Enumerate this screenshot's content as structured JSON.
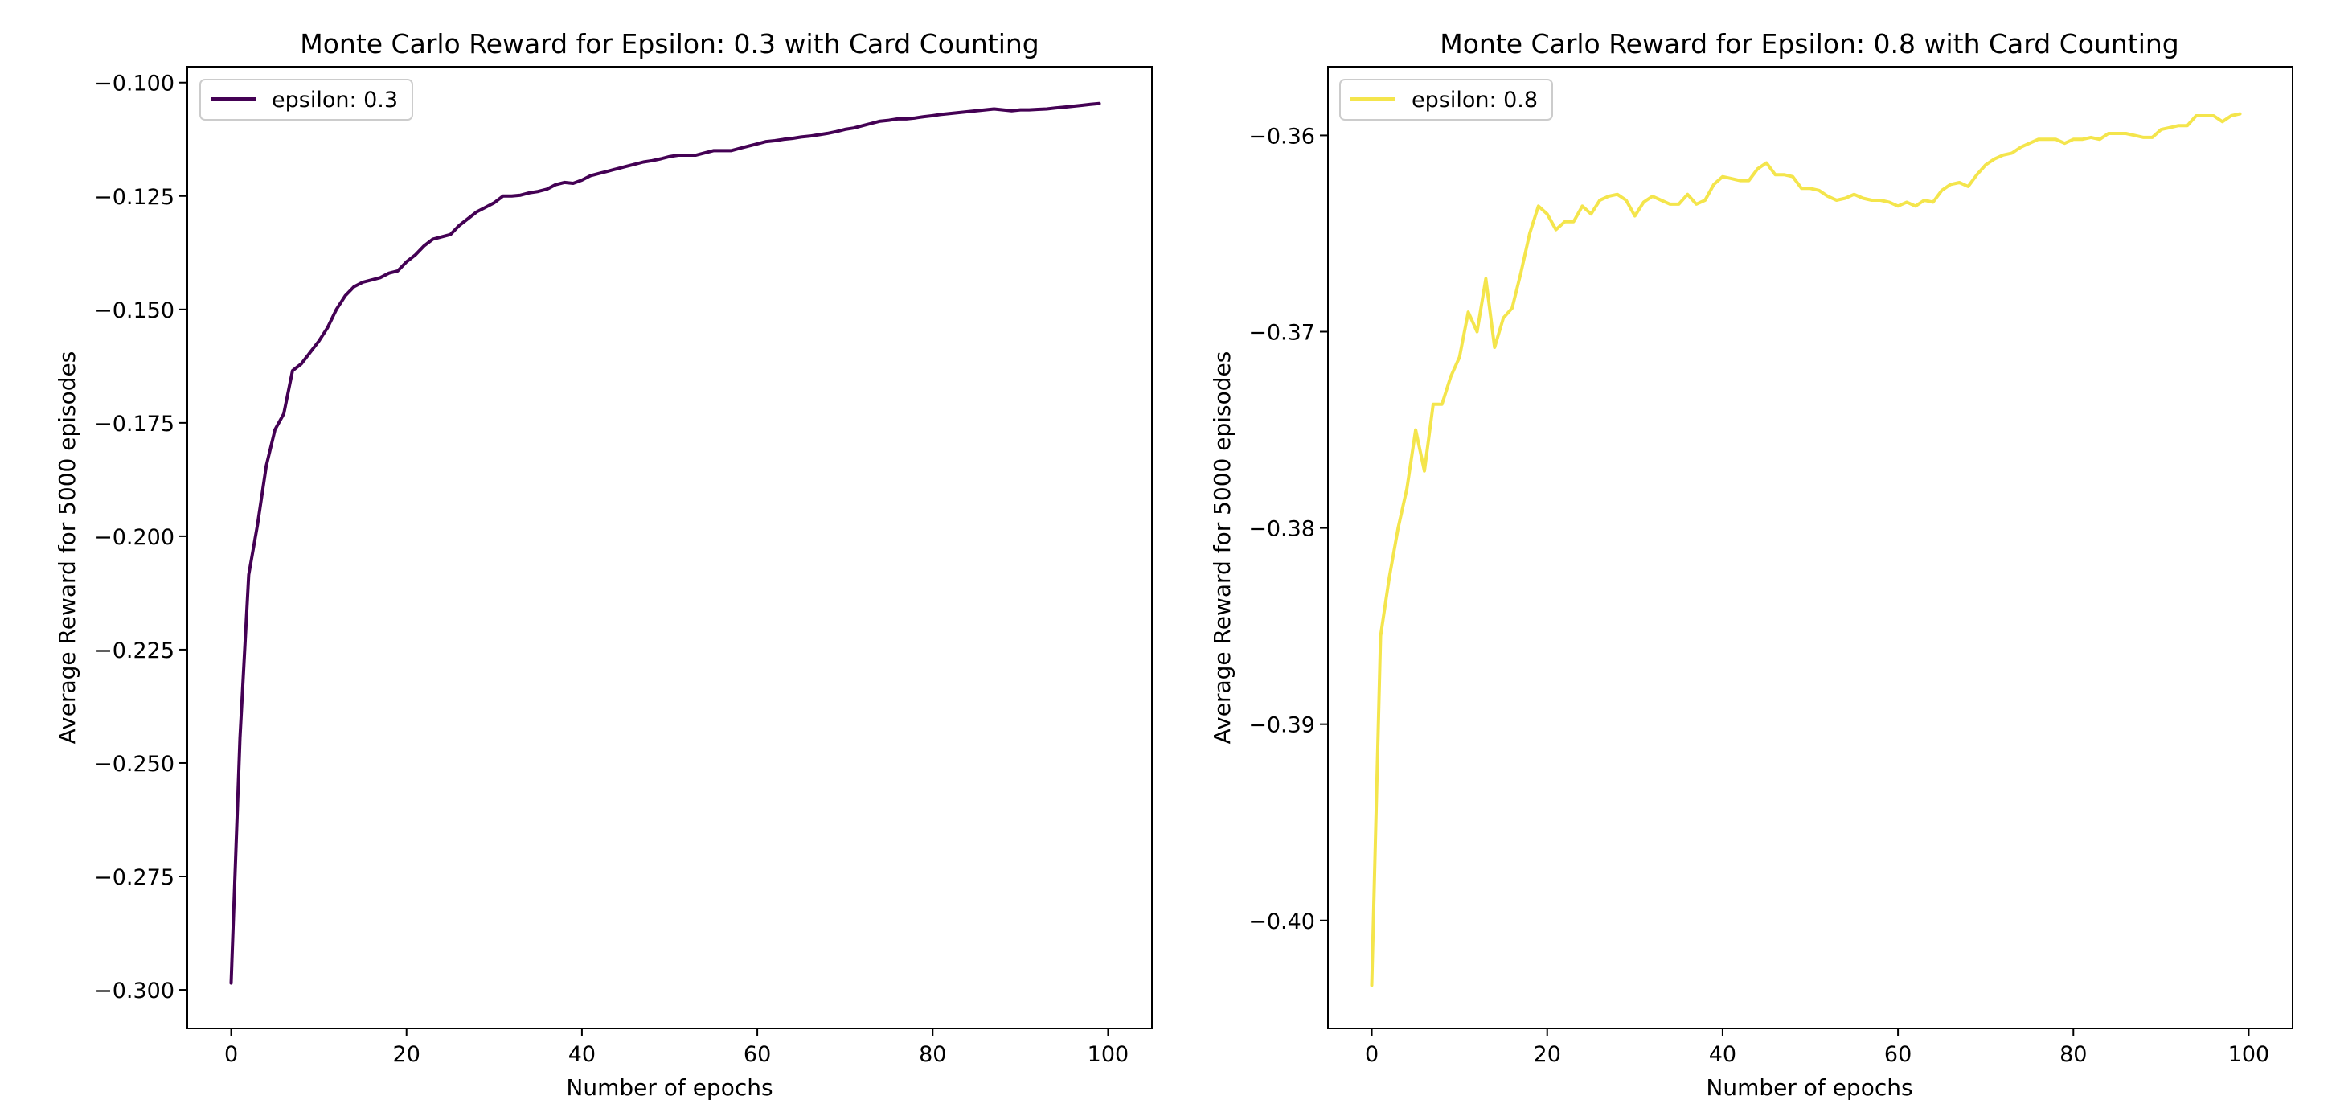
{
  "chart_data": [
    {
      "type": "line",
      "title": "Monte Carlo Reward for Epsilon: 0.3 with Card Counting",
      "xlabel": "Number of epochs",
      "ylabel": "Average Reward for 5000 episodes",
      "xlim": [
        -5,
        105
      ],
      "ylim": [
        -0.3085,
        -0.0965
      ],
      "xticks": [
        0,
        20,
        40,
        60,
        80,
        100
      ],
      "xtick_labels": [
        "0",
        "20",
        "40",
        "60",
        "80",
        "100"
      ],
      "yticks": [
        -0.1,
        -0.125,
        -0.15,
        -0.175,
        -0.2,
        -0.225,
        -0.25,
        -0.275,
        -0.3
      ],
      "ytick_labels": [
        "−0.100",
        "−0.125",
        "−0.150",
        "−0.175",
        "−0.200",
        "−0.225",
        "−0.250",
        "−0.275",
        "−0.300"
      ],
      "grid": false,
      "legend": "top-left",
      "color": "#440154",
      "series": [
        {
          "name": "epsilon: 0.3",
          "x": [
            0,
            1,
            2,
            3,
            4,
            5,
            6,
            7,
            8,
            9,
            10,
            11,
            12,
            13,
            14,
            15,
            16,
            17,
            18,
            19,
            20,
            21,
            22,
            23,
            24,
            25,
            26,
            27,
            28,
            29,
            30,
            31,
            32,
            33,
            34,
            35,
            36,
            37,
            38,
            39,
            40,
            41,
            42,
            43,
            44,
            45,
            46,
            47,
            48,
            49,
            50,
            51,
            52,
            53,
            54,
            55,
            56,
            57,
            58,
            59,
            60,
            61,
            62,
            63,
            64,
            65,
            66,
            67,
            68,
            69,
            70,
            71,
            72,
            73,
            74,
            75,
            76,
            77,
            78,
            79,
            80,
            81,
            82,
            83,
            84,
            85,
            86,
            87,
            88,
            89,
            90,
            91,
            92,
            93,
            94,
            95,
            96,
            97,
            98,
            99
          ],
          "y": [
            -0.2985,
            -0.2445,
            -0.2085,
            -0.1975,
            -0.1845,
            -0.1765,
            -0.173,
            -0.1635,
            -0.162,
            -0.1595,
            -0.157,
            -0.154,
            -0.15,
            -0.147,
            -0.145,
            -0.144,
            -0.1435,
            -0.143,
            -0.142,
            -0.1415,
            -0.1395,
            -0.138,
            -0.136,
            -0.1345,
            -0.134,
            -0.1335,
            -0.1315,
            -0.13,
            -0.1285,
            -0.1275,
            -0.1265,
            -0.125,
            -0.125,
            -0.1248,
            -0.1243,
            -0.124,
            -0.1235,
            -0.1225,
            -0.122,
            -0.1222,
            -0.1215,
            -0.1205,
            -0.12,
            -0.1195,
            -0.119,
            -0.1185,
            -0.118,
            -0.1175,
            -0.1172,
            -0.1168,
            -0.1163,
            -0.116,
            -0.116,
            -0.116,
            -0.1155,
            -0.115,
            -0.115,
            -0.115,
            -0.1145,
            -0.114,
            -0.1135,
            -0.113,
            -0.1128,
            -0.1125,
            -0.1123,
            -0.112,
            -0.1118,
            -0.1115,
            -0.1112,
            -0.1108,
            -0.1103,
            -0.11,
            -0.1095,
            -0.109,
            -0.1085,
            -0.1083,
            -0.108,
            -0.108,
            -0.1078,
            -0.1075,
            -0.1073,
            -0.107,
            -0.1068,
            -0.1066,
            -0.1064,
            -0.1062,
            -0.106,
            -0.1058,
            -0.106,
            -0.1062,
            -0.106,
            -0.106,
            -0.1059,
            -0.1058,
            -0.1056,
            -0.1054,
            -0.1052,
            -0.105,
            -0.1048,
            -0.1046
          ]
        }
      ]
    },
    {
      "type": "line",
      "title": "Monte Carlo Reward for Epsilon: 0.8 with Card Counting",
      "xlabel": "Number of epochs",
      "ylabel": "Average Reward for 5000 episodes",
      "xlim": [
        -5,
        105
      ],
      "ylim": [
        -0.4055,
        -0.3565
      ],
      "xticks": [
        0,
        20,
        40,
        60,
        80,
        100
      ],
      "xtick_labels": [
        "0",
        "20",
        "40",
        "60",
        "80",
        "100"
      ],
      "yticks": [
        -0.36,
        -0.37,
        -0.38,
        -0.39,
        -0.4
      ],
      "ytick_labels": [
        "−0.36",
        "−0.37",
        "−0.38",
        "−0.39",
        "−0.40"
      ],
      "grid": false,
      "legend": "top-left",
      "color": "#f4e54c",
      "series": [
        {
          "name": "epsilon: 0.8",
          "x": [
            0,
            1,
            2,
            3,
            4,
            5,
            6,
            7,
            8,
            9,
            10,
            11,
            12,
            13,
            14,
            15,
            16,
            17,
            18,
            19,
            20,
            21,
            22,
            23,
            24,
            25,
            26,
            27,
            28,
            29,
            30,
            31,
            32,
            33,
            34,
            35,
            36,
            37,
            38,
            39,
            40,
            41,
            42,
            43,
            44,
            45,
            46,
            47,
            48,
            49,
            50,
            51,
            52,
            53,
            54,
            55,
            56,
            57,
            58,
            59,
            60,
            61,
            62,
            63,
            64,
            65,
            66,
            67,
            68,
            69,
            70,
            71,
            72,
            73,
            74,
            75,
            76,
            77,
            78,
            79,
            80,
            81,
            82,
            83,
            84,
            85,
            86,
            87,
            88,
            89,
            90,
            91,
            92,
            93,
            94,
            95,
            96,
            97,
            98,
            99
          ],
          "y": [
            -0.4033,
            -0.3855,
            -0.3825,
            -0.38,
            -0.378,
            -0.375,
            -0.3771,
            -0.3737,
            -0.3737,
            -0.3723,
            -0.3713,
            -0.369,
            -0.37,
            -0.3673,
            -0.3708,
            -0.3693,
            -0.3688,
            -0.367,
            -0.365,
            -0.3636,
            -0.364,
            -0.3648,
            -0.3644,
            -0.3644,
            -0.3636,
            -0.364,
            -0.3633,
            -0.3631,
            -0.363,
            -0.3633,
            -0.3641,
            -0.3634,
            -0.3631,
            -0.3633,
            -0.3635,
            -0.3635,
            -0.363,
            -0.3635,
            -0.3633,
            -0.3625,
            -0.3621,
            -0.3622,
            -0.3623,
            -0.3623,
            -0.3617,
            -0.3614,
            -0.362,
            -0.362,
            -0.3621,
            -0.3627,
            -0.3627,
            -0.3628,
            -0.3631,
            -0.3633,
            -0.3632,
            -0.363,
            -0.3632,
            -0.3633,
            -0.3633,
            -0.3634,
            -0.3636,
            -0.3634,
            -0.3636,
            -0.3633,
            -0.3634,
            -0.3628,
            -0.3625,
            -0.3624,
            -0.3626,
            -0.362,
            -0.3615,
            -0.3612,
            -0.361,
            -0.3609,
            -0.3606,
            -0.3604,
            -0.3602,
            -0.3602,
            -0.3602,
            -0.3604,
            -0.3602,
            -0.3602,
            -0.3601,
            -0.3602,
            -0.3599,
            -0.3599,
            -0.3599,
            -0.36,
            -0.3601,
            -0.3601,
            -0.3597,
            -0.3596,
            -0.3595,
            -0.3595,
            -0.359,
            -0.359,
            -0.359,
            -0.3593,
            -0.359,
            -0.3589
          ]
        }
      ]
    }
  ]
}
